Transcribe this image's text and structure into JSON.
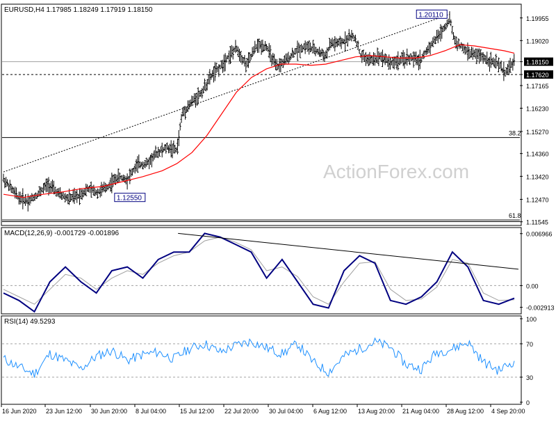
{
  "header": {
    "price_title": "EURUSD,H4  1.17985 1.18249 1.17919 1.18150",
    "macd_title": "MACD(12,26,9) -0.001729 -0.001896",
    "rsi_title": "RSI(14) 49.5293"
  },
  "watermark": "ActionForex.com",
  "colors": {
    "price_bars": "#000000",
    "moving_average": "#ff0000",
    "macd_line": "#000080",
    "signal_line": "#a0a0a0",
    "rsi_line": "#1e90ff",
    "horizontal_lines": "#000000",
    "watermark": "#d0d0d0"
  },
  "price_axis_labels": [
    "1.19955",
    "1.19020",
    "1.18150",
    "1.17620",
    "1.17165",
    "1.16230",
    "1.15270",
    "1.14360",
    "1.13420",
    "1.12470",
    "1.11545"
  ],
  "macd_axis_labels": [
    "0.006966",
    "0.00",
    "-0.002913"
  ],
  "rsi_axis_labels": [
    "100",
    "70",
    "30",
    "0"
  ],
  "time_labels": [
    "16 Jun 2020",
    "23 Jun 12:00",
    "30 Jun 20:00",
    "8 Jul 04:00",
    "15 Jul 12:00",
    "22 Jul 20:00",
    "30 Jul 04:00",
    "6 Aug 12:00",
    "13 Aug 20:00",
    "21 Aug 04:00",
    "28 Aug 12:00",
    "4 Sep 20:00"
  ],
  "annotations": {
    "high_label": "1.20110",
    "low_label": "1.12550",
    "fib_38": "38.2",
    "fib_61": "61.8"
  },
  "chart_data": [
    {
      "type": "bar",
      "panel": "price",
      "title": "EURUSD,H4  1.17985 1.18249 1.17919 1.18150",
      "ylim": [
        1.1145,
        1.2035
      ],
      "y_ticks": [
        1.19955,
        1.1902,
        1.1815,
        1.1762,
        1.17165,
        1.1623,
        1.1527,
        1.1436,
        1.1342,
        1.1247,
        1.11545
      ],
      "x_labels": [
        "16 Jun 2020",
        "23 Jun 12:00",
        "30 Jun 20:00",
        "8 Jul 04:00",
        "15 Jul 12:00",
        "22 Jul 20:00",
        "30 Jul 04:00",
        "6 Aug 12:00",
        "13 Aug 20:00",
        "21 Aug 04:00",
        "28 Aug 12:00",
        "4 Sep 20:00"
      ],
      "close_path": [
        [
          0,
          1.133
        ],
        [
          15,
          1.1255
        ],
        [
          25,
          1.124
        ],
        [
          35,
          1.127
        ],
        [
          45,
          1.131
        ],
        [
          55,
          1.127
        ],
        [
          65,
          1.125
        ],
        [
          75,
          1.126
        ],
        [
          85,
          1.129
        ],
        [
          95,
          1.1275
        ],
        [
          105,
          1.13
        ],
        [
          115,
          1.134
        ],
        [
          125,
          1.133
        ],
        [
          135,
          1.139
        ],
        [
          145,
          1.1395
        ],
        [
          155,
          1.144
        ],
        [
          165,
          1.146
        ],
        [
          175,
          1.145
        ],
        [
          180,
          1.16
        ],
        [
          190,
          1.165
        ],
        [
          200,
          1.169
        ],
        [
          210,
          1.176
        ],
        [
          220,
          1.18
        ],
        [
          225,
          1.183
        ],
        [
          235,
          1.187
        ],
        [
          245,
          1.18
        ],
        [
          255,
          1.188
        ],
        [
          265,
          1.188
        ],
        [
          275,
          1.179
        ],
        [
          285,
          1.182
        ],
        [
          295,
          1.186
        ],
        [
          305,
          1.188
        ],
        [
          315,
          1.186
        ],
        [
          325,
          1.184
        ],
        [
          330,
          1.189
        ],
        [
          340,
          1.189
        ],
        [
          350,
          1.192
        ],
        [
          355,
          1.191
        ],
        [
          360,
          1.184
        ],
        [
          370,
          1.182
        ],
        [
          380,
          1.184
        ],
        [
          390,
          1.181
        ],
        [
          400,
          1.182
        ],
        [
          410,
          1.183
        ],
        [
          420,
          1.182
        ],
        [
          430,
          1.188
        ],
        [
          440,
          1.193
        ],
        [
          445,
          1.196
        ],
        [
          450,
          1.199
        ],
        [
          455,
          1.19
        ],
        [
          460,
          1.188
        ],
        [
          470,
          1.185
        ],
        [
          480,
          1.184
        ],
        [
          490,
          1.182
        ],
        [
          500,
          1.18
        ],
        [
          505,
          1.177
        ],
        [
          510,
          1.179
        ],
        [
          515,
          1.1815
        ]
      ],
      "moving_average": [
        [
          0,
          1.1268
        ],
        [
          20,
          1.1255
        ],
        [
          40,
          1.1268
        ],
        [
          60,
          1.1278
        ],
        [
          80,
          1.1292
        ],
        [
          100,
          1.13
        ],
        [
          120,
          1.132
        ],
        [
          140,
          1.134
        ],
        [
          160,
          1.1365
        ],
        [
          175,
          1.1395
        ],
        [
          190,
          1.144
        ],
        [
          205,
          1.151
        ],
        [
          220,
          1.16
        ],
        [
          235,
          1.169
        ],
        [
          250,
          1.175
        ],
        [
          265,
          1.1785
        ],
        [
          280,
          1.1805
        ],
        [
          295,
          1.1805
        ],
        [
          310,
          1.18
        ],
        [
          325,
          1.1805
        ],
        [
          340,
          1.182
        ],
        [
          355,
          1.1835
        ],
        [
          370,
          1.184
        ],
        [
          385,
          1.1835
        ],
        [
          400,
          1.183
        ],
        [
          415,
          1.183
        ],
        [
          430,
          1.184
        ],
        [
          445,
          1.186
        ],
        [
          460,
          1.1885
        ],
        [
          475,
          1.188
        ],
        [
          490,
          1.187
        ],
        [
          505,
          1.186
        ],
        [
          515,
          1.185
        ]
      ],
      "trend_line": [
        [
          1.136,
          1.2011
        ]
      ],
      "horizontal_levels": [
        1.1815,
        1.1762,
        1.1502,
        1.1162,
        1.1155
      ],
      "level_labels": {
        "38.2": 1.1502,
        "61.8": 1.1162
      },
      "marked_high": 1.2011,
      "marked_low": 1.1255
    },
    {
      "type": "line",
      "panel": "macd",
      "title": "MACD(12,26,9) -0.001729 -0.001896",
      "ylim": [
        -0.0036,
        0.0075
      ],
      "y_ticks": [
        0.006966,
        0.0,
        -0.002913
      ],
      "series": [
        {
          "name": "MACD",
          "values": [
            -0.001,
            -0.002,
            -0.0035,
            0.0005,
            0.0025,
            0.0005,
            -0.001,
            0.002,
            0.0025,
            0.001,
            0.0035,
            0.0045,
            0.0045,
            0.007,
            0.0065,
            0.0055,
            0.0045,
            0.001,
            0.0035,
            0.0005,
            -0.0025,
            -0.003,
            0.002,
            0.004,
            0.003,
            -0.002,
            -0.0025,
            -0.0015,
            0.0005,
            0.0045,
            0.0025,
            -0.002,
            -0.0025,
            -0.0017
          ]
        },
        {
          "name": "Signal",
          "values": [
            -0.0005,
            -0.0015,
            -0.0025,
            -0.0005,
            0.0015,
            0.001,
            -0.0005,
            0.001,
            0.002,
            0.0015,
            0.003,
            0.004,
            0.0045,
            0.006,
            0.0065,
            0.0058,
            0.0048,
            0.002,
            0.0025,
            0.0012,
            -0.0015,
            -0.0025,
            0.0005,
            0.003,
            0.0032,
            -0.0005,
            -0.002,
            -0.0018,
            -0.0002,
            0.0035,
            0.003,
            -0.001,
            -0.002,
            -0.0019
          ]
        }
      ],
      "trend_line": [
        [
          0.007,
          0.0022
        ]
      ]
    },
    {
      "type": "line",
      "panel": "rsi",
      "title": "RSI(14) 49.5293",
      "ylim": [
        0,
        100
      ],
      "y_ticks": [
        100,
        70,
        30,
        0
      ],
      "levels": [
        70,
        30
      ],
      "series": [
        {
          "name": "RSI(14)",
          "values": [
            52,
            42,
            34,
            58,
            50,
            40,
            55,
            62,
            50,
            57,
            60,
            52,
            64,
            70,
            60,
            68,
            73,
            65,
            58,
            70,
            48,
            36,
            55,
            64,
            72,
            66,
            45,
            40,
            60,
            64,
            72,
            48,
            38,
            49.5
          ]
        }
      ]
    }
  ]
}
